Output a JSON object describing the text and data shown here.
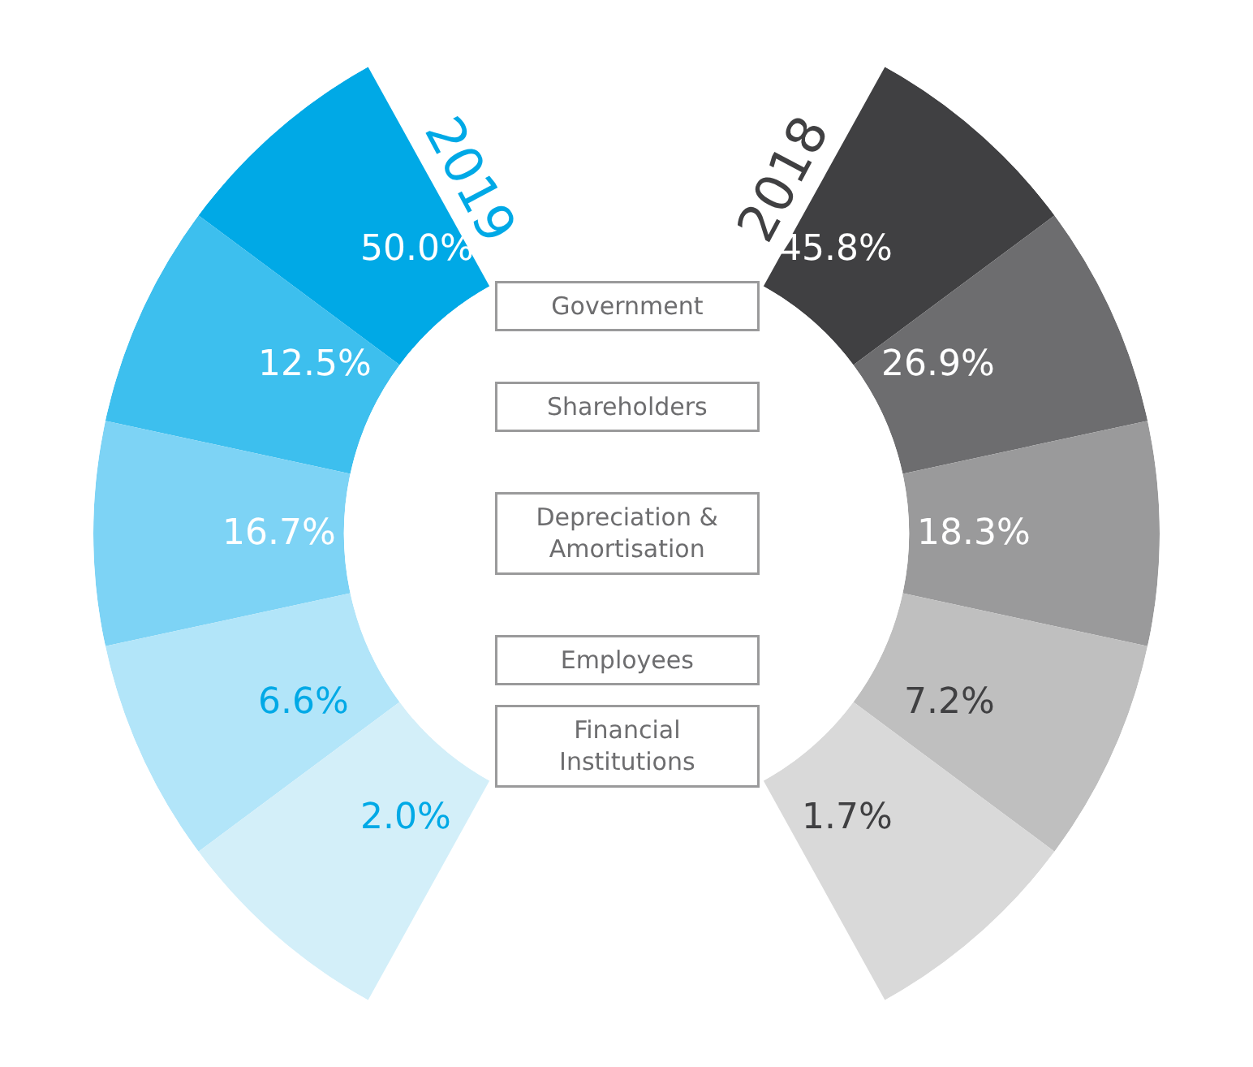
{
  "chart_data": {
    "type": "other",
    "categories": [
      "Government",
      "Shareholders",
      "Depreciation & Amortisation",
      "Employees",
      "Financial Institutions"
    ],
    "series": [
      {
        "name": "2019",
        "values": [
          50.0,
          12.5,
          16.7,
          6.6,
          2.0
        ],
        "value_labels": [
          "50.0%",
          "12.5%",
          "16.7%",
          "6.6%",
          "2.0%"
        ],
        "colors": [
          "#00a9e6",
          "#3dbfee",
          "#7dd3f5",
          "#b2e5f9",
          "#d3eff9"
        ]
      },
      {
        "name": "2018",
        "values": [
          45.8,
          26.9,
          18.3,
          7.2,
          1.7
        ],
        "value_labels": [
          "45.8%",
          "26.9%",
          "18.3%",
          "7.2%",
          "1.7%"
        ],
        "colors": [
          "#404042",
          "#6d6d6f",
          "#9a9a9b",
          "#bfbfbf",
          "#d9d9d9"
        ]
      }
    ],
    "legend": false
  }
}
